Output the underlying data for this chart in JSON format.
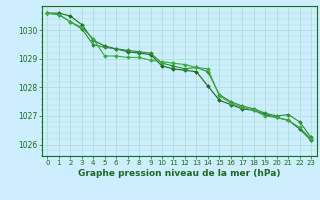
{
  "series": [
    {
      "x": [
        0,
        1,
        2,
        3,
        4,
        5,
        6,
        7,
        8,
        9,
        10,
        11,
        12,
        13,
        14,
        15,
        16,
        17,
        18,
        19,
        20,
        21,
        22,
        23
      ],
      "y": [
        1030.6,
        1030.6,
        1030.5,
        1030.2,
        1029.65,
        1029.45,
        1029.35,
        1029.25,
        1029.2,
        1029.15,
        1028.75,
        1028.65,
        1028.6,
        1028.55,
        1028.05,
        1027.55,
        1027.4,
        1027.25,
        1027.2,
        1027.05,
        1026.95,
        1026.85,
        1026.55,
        1026.15
      ],
      "color": "#1a6b1a",
      "linewidth": 0.8,
      "marker": "D",
      "markersize": 2.0
    },
    {
      "x": [
        0,
        1,
        2,
        3,
        4,
        5,
        6,
        7,
        8,
        9,
        10,
        11,
        12,
        13,
        14,
        15,
        16,
        17,
        18,
        19,
        20,
        21,
        22,
        23
      ],
      "y": [
        1030.6,
        1030.55,
        1030.3,
        1030.05,
        1029.5,
        1029.4,
        1029.35,
        1029.3,
        1029.25,
        1029.2,
        1028.85,
        1028.75,
        1028.65,
        1028.7,
        1028.55,
        1027.75,
        1027.5,
        1027.35,
        1027.25,
        1027.1,
        1027.0,
        1027.05,
        1026.8,
        1026.25
      ],
      "color": "#2d8b2d",
      "linewidth": 0.8,
      "marker": "D",
      "markersize": 2.0
    },
    {
      "x": [
        0,
        1,
        2,
        3,
        4,
        5,
        6,
        7,
        8,
        9,
        10,
        11,
        12,
        13,
        14,
        15,
        16,
        17,
        18,
        19,
        20,
        21,
        22,
        23
      ],
      "y": [
        1030.6,
        1030.55,
        1030.3,
        1030.1,
        1029.7,
        1029.1,
        1029.1,
        1029.05,
        1029.05,
        1028.95,
        1028.9,
        1028.85,
        1028.8,
        1028.7,
        1028.65,
        1027.7,
        1027.45,
        1027.3,
        1027.2,
        1027.0,
        1026.95,
        1026.85,
        1026.6,
        1026.2
      ],
      "color": "#3aad3a",
      "linewidth": 0.8,
      "marker": "D",
      "markersize": 2.0
    }
  ],
  "xlim": [
    -0.5,
    23.5
  ],
  "ylim": [
    1025.6,
    1030.85
  ],
  "yticks": [
    1026,
    1027,
    1028,
    1029,
    1030
  ],
  "xticks": [
    0,
    1,
    2,
    3,
    4,
    5,
    6,
    7,
    8,
    9,
    10,
    11,
    12,
    13,
    14,
    15,
    16,
    17,
    18,
    19,
    20,
    21,
    22,
    23
  ],
  "xlabel": "Graphe pression niveau de la mer (hPa)",
  "background_color": "#cceeff",
  "grid_color": "#aaddcc",
  "axis_color": "#1a6b1a",
  "label_color": "#1a6b1a",
  "tick_color": "#1a6b1a",
  "xlabel_fontsize": 6.5,
  "ytick_fontsize": 5.5,
  "xtick_fontsize": 5.0
}
